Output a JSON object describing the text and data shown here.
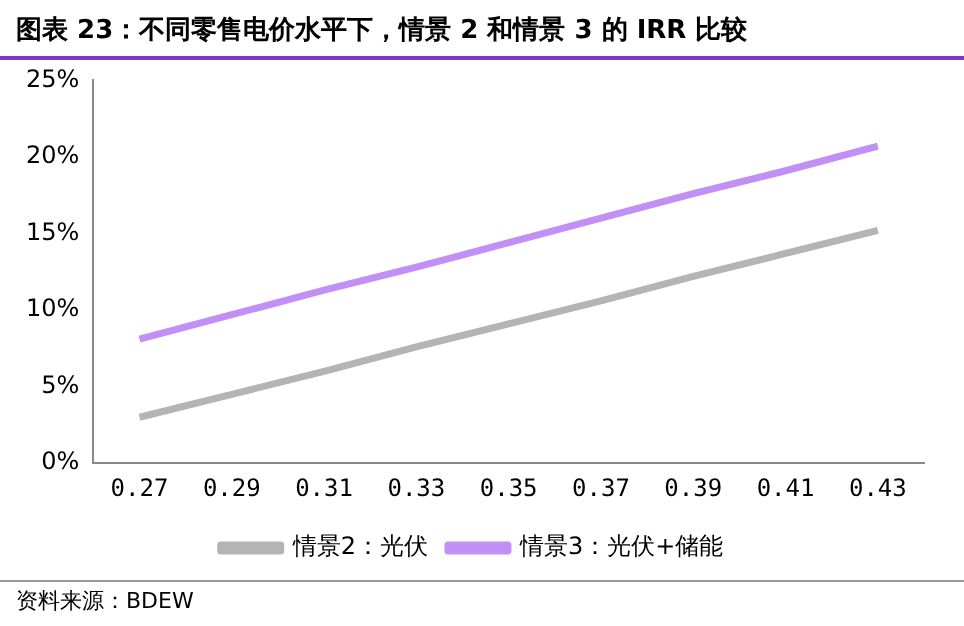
{
  "chart_data": {
    "type": "line",
    "title": "图表 23：不同零售电价水平下，情景 2 和情景 3 的 IRR 比较",
    "categories": [
      "0.27",
      "0.29",
      "0.31",
      "0.33",
      "0.35",
      "0.37",
      "0.39",
      "0.41",
      "0.43"
    ],
    "series": [
      {
        "name": "情景2：光伏",
        "color": "#b4b4b4",
        "values": [
          3.0,
          4.5,
          6.0,
          7.6,
          9.1,
          10.6,
          12.2,
          13.7,
          15.2
        ]
      },
      {
        "name": "情景3：光伏+储能",
        "color": "#c28ff7",
        "values": [
          8.1,
          9.7,
          11.3,
          12.8,
          14.4,
          16.0,
          17.6,
          19.1,
          20.7
        ]
      }
    ],
    "ylim": [
      0,
      25
    ],
    "yticks": [
      {
        "value": 0,
        "label": "0%"
      },
      {
        "value": 5,
        "label": "5%"
      },
      {
        "value": 10,
        "label": "10%"
      },
      {
        "value": 15,
        "label": "15%"
      },
      {
        "value": 20,
        "label": "20%"
      },
      {
        "value": 25,
        "label": "25%"
      }
    ],
    "grid": false,
    "legend": "bottom",
    "marker": "none",
    "line_style": "solid",
    "annotations": [
      "资料来源：BDEW"
    ]
  }
}
